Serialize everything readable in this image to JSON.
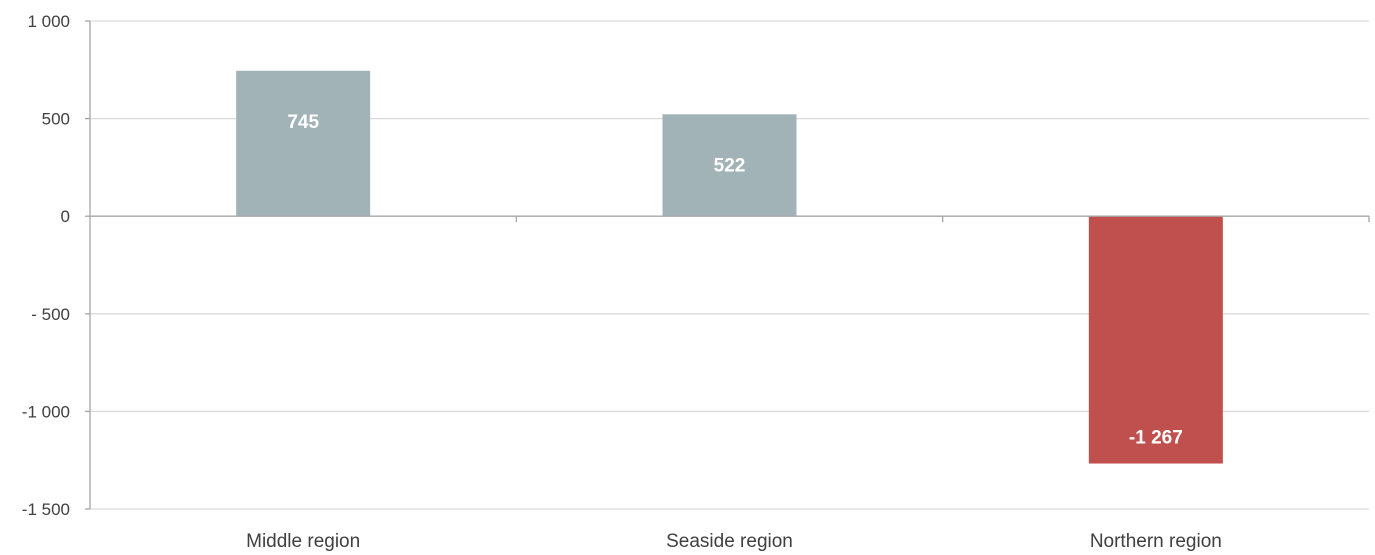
{
  "chart_data": {
    "type": "bar",
    "title": "",
    "xlabel": "",
    "ylabel": "",
    "categories": [
      "Middle region",
      "Seaside region",
      "Northern region"
    ],
    "values": [
      745,
      522,
      -1267
    ],
    "data_labels": [
      "745",
      "522",
      "-1 267"
    ],
    "ylim": [
      -1500,
      1000
    ],
    "yticks": [
      1000,
      500,
      0,
      -500,
      -1000,
      -1500
    ],
    "ytick_labels": [
      "1 000",
      "500",
      "0",
      "- 500",
      "-1 000",
      "-1 500"
    ],
    "grid": true,
    "legend": "none",
    "colors": {
      "positive": "#a2b3b8",
      "negative": "#c0504d",
      "grid": "#d9d9d9",
      "axis": "#a6a6a6"
    }
  }
}
